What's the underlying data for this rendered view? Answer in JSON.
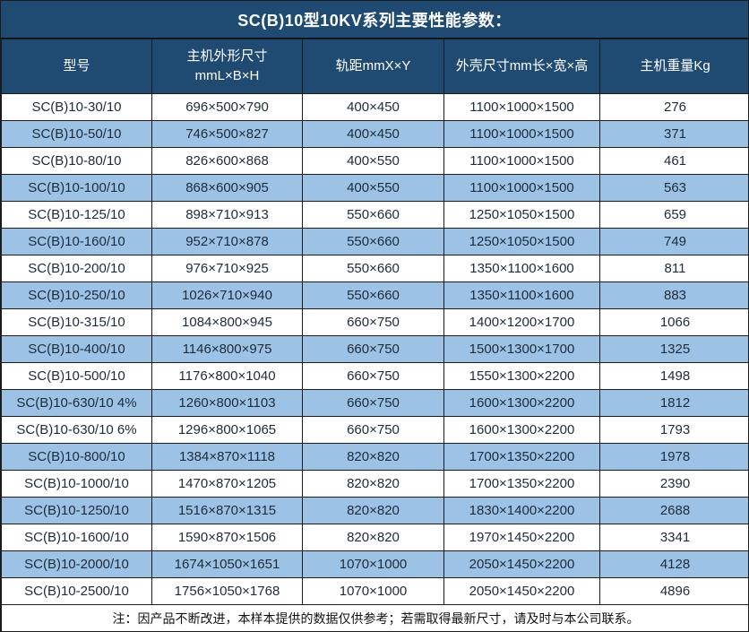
{
  "title": "SC(B)10型10KV系列主要性能参数：",
  "colors": {
    "header_bg": "#1f4b73",
    "stripe_bg": "#9cc3e5",
    "border": "#1b1b1b",
    "header_text": "#ffffff",
    "body_text": "#1d2b3a"
  },
  "columns": [
    {
      "key": "model",
      "label": "型号"
    },
    {
      "key": "dims",
      "line1": "主机外形尺寸",
      "line2": "mmL×B×H"
    },
    {
      "key": "rail",
      "label": "轨距mmX×Y"
    },
    {
      "key": "shell",
      "label": "外壳尺寸mm长×宽×高"
    },
    {
      "key": "weight",
      "label": "主机重量Kg"
    }
  ],
  "rows": [
    [
      "SC(B)10-30/10",
      "696×500×790",
      "400×450",
      "1100×1000×1500",
      "276"
    ],
    [
      "SC(B)10-50/10",
      "746×500×827",
      "400×450",
      "1100×1000×1500",
      "371"
    ],
    [
      "SC(B)10-80/10",
      "826×600×868",
      "400×550",
      "1100×1000×1500",
      "461"
    ],
    [
      "SC(B)10-100/10",
      "868×600×905",
      "400×550",
      "1100×1000×1500",
      "563"
    ],
    [
      "SC(B)10-125/10",
      "898×710×913",
      "550×660",
      "1250×1050×1500",
      "659"
    ],
    [
      "SC(B)10-160/10",
      "952×710×878",
      "550×660",
      "1250×1050×1500",
      "749"
    ],
    [
      "SC(B)10-200/10",
      "976×710×925",
      "550×660",
      "1350×1100×1600",
      "811"
    ],
    [
      "SC(B)10-250/10",
      "1026×710×940",
      "550×660",
      "1350×1100×1600",
      "883"
    ],
    [
      "SC(B)10-315/10",
      "1084×800×945",
      "660×750",
      "1400×1200×1700",
      "1066"
    ],
    [
      "SC(B)10-400/10",
      "1146×800×975",
      "660×750",
      "1500×1300×1700",
      "1325"
    ],
    [
      "SC(B)10-500/10",
      "1176×800×1040",
      "660×750",
      "1550×1300×2200",
      "1498"
    ],
    [
      "SC(B)10-630/10 4%",
      "1260×800×1103",
      "660×750",
      "1600×1300×2200",
      "1812"
    ],
    [
      "SC(B)10-630/10 6%",
      "1296×800×1065",
      "660×750",
      "1600×1300×2200",
      "1793"
    ],
    [
      "SC(B)10-800/10",
      "1384×870×1118",
      "820×820",
      "1700×1350×2200",
      "1978"
    ],
    [
      "SC(B)10-1000/10",
      "1470×870×1205",
      "820×820",
      "1700×1350×2200",
      "2390"
    ],
    [
      "SC(B)10-1250/10",
      "1516×870×1315",
      "820×820",
      "1830×1400×2200",
      "2688"
    ],
    [
      "SC(B)10-1600/10",
      "1590×870×1506",
      "820×820",
      "1970×1450×2200",
      "3341"
    ],
    [
      "SC(B)10-2000/10",
      "1674×1050×1651",
      "1070×1000",
      "2050×1450×2200",
      "4128"
    ],
    [
      "SC(B)10-2500/10",
      "1756×1050×1768",
      "1070×1000",
      "2050×1450×2200",
      "4896"
    ]
  ],
  "note": "注：因产品不断改进，本样本提供的数据仅供参考；若需取得最新尺寸，请及时与本公司联系。"
}
